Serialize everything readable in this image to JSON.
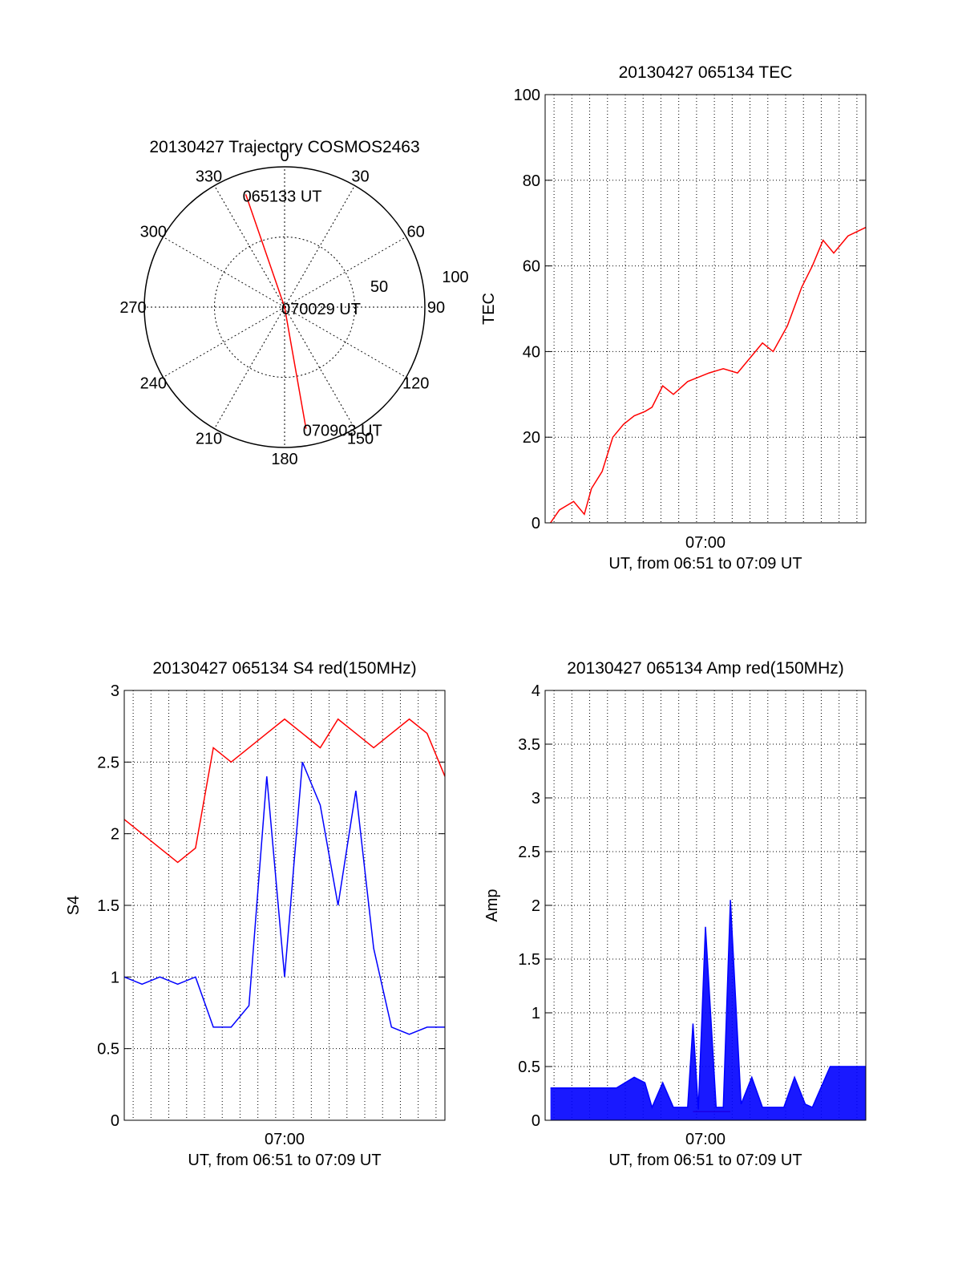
{
  "chart_data": [
    {
      "type": "polar",
      "title": "20130427 Trajectory COSMOS2463",
      "angle_labels": [
        "0",
        "30",
        "60",
        "90",
        "120",
        "150",
        "180",
        "210",
        "240",
        "270",
        "300",
        "330"
      ],
      "radial_labels": [
        "50",
        "100"
      ],
      "elevation_range": [
        0,
        100
      ],
      "track_color": "#ff0000",
      "track": [
        {
          "azimuth": 341,
          "radius": 85,
          "label": "065133 UT"
        },
        {
          "azimuth": 0,
          "radius": 0,
          "label": "070029 UT"
        },
        {
          "azimuth": 170,
          "radius": 88,
          "label": "070903 UT"
        }
      ]
    },
    {
      "type": "line",
      "title": "20130427 065134 TEC",
      "xlabel": "UT, from 06:51 to 07:09 UT",
      "ylabel": "TEC",
      "x_tick_label": "07:00",
      "xlim": [
        0,
        18
      ],
      "ylim": [
        0,
        100
      ],
      "yticks": [
        "0",
        "20",
        "40",
        "60",
        "80",
        "100"
      ],
      "grid": true,
      "series": [
        {
          "color": "#ff0000",
          "x": [
            0.3,
            0.8,
            1.2,
            1.6,
            2.2,
            2.6,
            3.2,
            3.8,
            4.4,
            5.0,
            5.6,
            6.0,
            6.6,
            7.2,
            8.0,
            8.6,
            9.2,
            10.0,
            10.8,
            11.6,
            12.2,
            12.8,
            13.6,
            14.4,
            15.0,
            15.6,
            16.2,
            17.0,
            18.0
          ],
          "y": [
            0,
            3,
            4,
            5,
            2,
            8,
            12,
            20,
            23,
            25,
            26,
            27,
            32,
            30,
            33,
            34,
            35,
            36,
            35,
            39,
            42,
            40,
            46,
            55,
            60,
            66,
            63,
            67,
            69
          ]
        }
      ]
    },
    {
      "type": "line",
      "title": "20130427 065134 S4 red(150MHz)",
      "xlabel": "UT, from 06:51 to 07:09 UT",
      "ylabel": "S4",
      "x_tick_label": "07:00",
      "xlim": [
        0,
        18
      ],
      "ylim": [
        0,
        3
      ],
      "yticks": [
        "0",
        "0.5",
        "1",
        "1.5",
        "2",
        "2.5",
        "3"
      ],
      "grid": true,
      "series": [
        {
          "color": "#ff0000",
          "x": [
            0,
            1,
            2,
            3,
            4,
            5,
            6,
            7,
            8,
            9,
            10,
            11,
            12,
            13,
            14,
            15,
            16,
            17,
            18
          ],
          "y": [
            2.1,
            2.0,
            1.9,
            1.8,
            1.9,
            2.6,
            2.5,
            2.6,
            2.7,
            2.8,
            2.7,
            2.6,
            2.8,
            2.7,
            2.6,
            2.7,
            2.8,
            2.7,
            2.4
          ]
        },
        {
          "color": "#0000ff",
          "x": [
            0,
            1,
            2,
            3,
            4,
            5,
            6,
            7,
            8,
            9,
            10,
            11,
            12,
            13,
            14,
            15,
            16,
            17,
            18
          ],
          "y": [
            1.0,
            0.95,
            1.0,
            0.95,
            1.0,
            0.65,
            0.65,
            0.8,
            2.4,
            1.0,
            2.5,
            2.2,
            1.5,
            2.3,
            1.2,
            0.65,
            0.6,
            0.65,
            0.65
          ]
        }
      ]
    },
    {
      "type": "line",
      "title": "20130427 065134 Amp red(150MHz)",
      "xlabel": "UT, from 06:51 to 07:09 UT",
      "ylabel": "Amp",
      "x_tick_label": "07:00",
      "xlim": [
        0,
        18
      ],
      "ylim": [
        0,
        4
      ],
      "yticks": [
        "0",
        "0.5",
        "1",
        "1.5",
        "2",
        "2.5",
        "3",
        "3.5",
        "4"
      ],
      "grid": true,
      "series": [
        {
          "color": "#0000ff",
          "x": [
            0.3,
            1,
            2,
            3,
            4,
            5,
            5.6,
            6.0,
            6.6,
            7.2,
            8.0,
            8.3,
            8.6,
            9.0,
            9.6,
            10.0,
            10.4,
            11.0,
            11.6,
            12.2,
            12.8,
            13.4,
            14.0,
            14.6,
            15.0,
            16.0,
            17.0,
            18.0
          ],
          "y": [
            0.3,
            0.3,
            0.3,
            0.3,
            0.3,
            0.4,
            0.35,
            0.12,
            0.35,
            0.12,
            0.12,
            0.9,
            0.1,
            1.8,
            0.12,
            0.12,
            2.05,
            0.15,
            0.4,
            0.12,
            0.12,
            0.12,
            0.4,
            0.15,
            0.12,
            0.5,
            0.5,
            0.5
          ]
        },
        {
          "color": "#ff0000",
          "x": [
            8.3,
            9.0,
            10.4
          ],
          "y": [
            0.08,
            0.08,
            0.08
          ]
        }
      ]
    }
  ]
}
